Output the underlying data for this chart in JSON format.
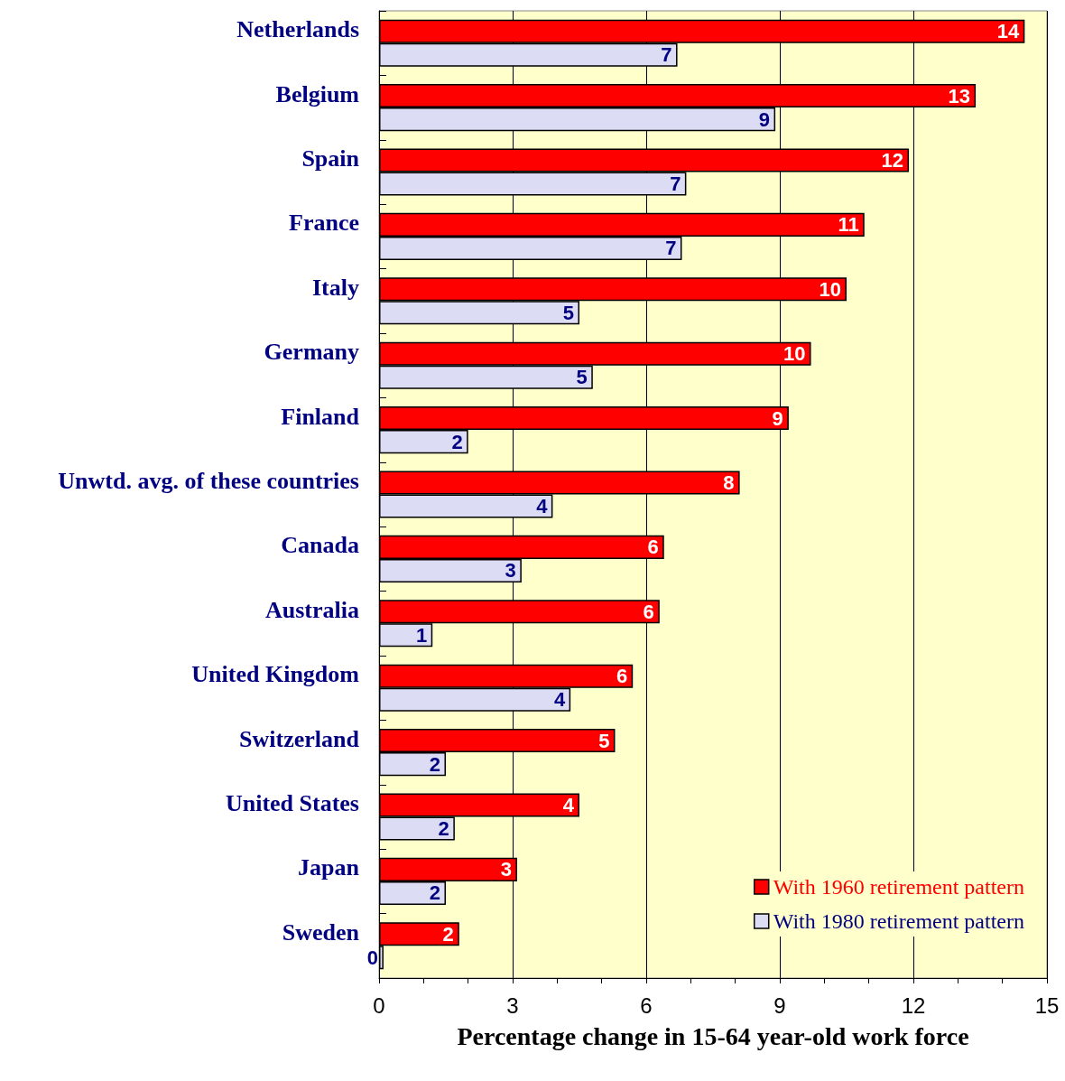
{
  "chart_data": {
    "type": "bar",
    "orientation": "horizontal",
    "xlabel": "Percentage change in 15-64 year-old work force",
    "categories": [
      "Netherlands",
      "Belgium",
      "Spain",
      "France",
      "Italy",
      "Germany",
      "Finland",
      "Unwtd. avg. of these countries",
      "Canada",
      "Australia",
      "United Kingdom",
      "Switzerland",
      "United States",
      "Japan",
      "Sweden"
    ],
    "series": [
      {
        "name": "With 1960 retirement pattern",
        "color": "#ff0000",
        "values": [
          14.5,
          13.4,
          11.9,
          10.9,
          10.5,
          9.7,
          9.2,
          8.1,
          6.4,
          6.3,
          5.7,
          5.3,
          4.5,
          3.1,
          1.8
        ],
        "value_labels": [
          "14",
          "13",
          "12",
          "11",
          "10",
          "10",
          "9",
          "8",
          "6",
          "6",
          "6",
          "5",
          "4",
          "3",
          "2"
        ]
      },
      {
        "name": "With 1980 retirement pattern",
        "color": "#dcdcf5",
        "values": [
          6.7,
          8.9,
          6.9,
          6.8,
          4.5,
          4.8,
          2.0,
          3.9,
          3.2,
          1.2,
          4.3,
          1.5,
          1.7,
          1.5,
          0.1
        ],
        "value_labels": [
          "7",
          "9",
          "7",
          "7",
          "5",
          "5",
          "2",
          "4",
          "3",
          "1",
          "4",
          "2",
          "2",
          "2",
          "0"
        ]
      }
    ],
    "xlim": [
      0,
      15
    ],
    "xticks": [
      0,
      {
        "value": 1,
        "label": null
      },
      {
        "value": 2,
        "label": null
      },
      3,
      {
        "value": 4,
        "label": null
      },
      {
        "value": 5,
        "label": null
      },
      6,
      {
        "value": 7,
        "label": null
      },
      {
        "value": 8,
        "label": null
      },
      9,
      {
        "value": 10,
        "label": null
      },
      {
        "value": 11,
        "label": null
      },
      12,
      {
        "value": 13,
        "label": null
      },
      {
        "value": 14,
        "label": null
      },
      15
    ],
    "grid": "x",
    "legend": "bottom right"
  }
}
